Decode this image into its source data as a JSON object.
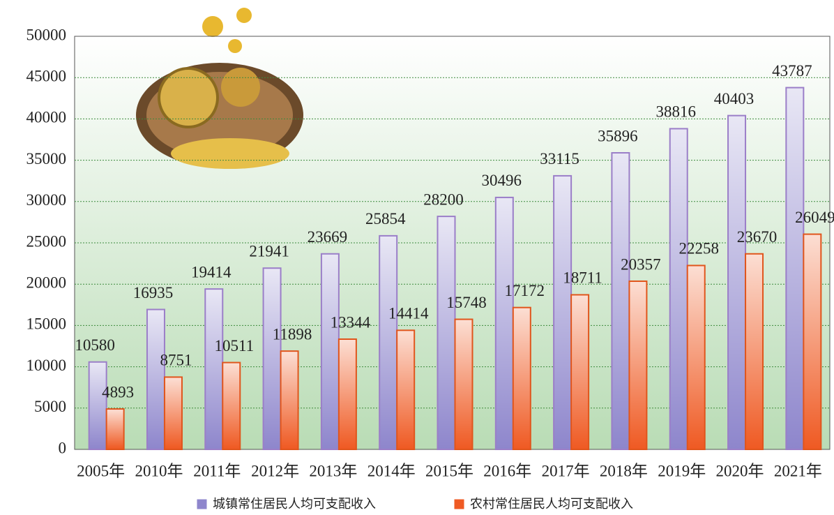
{
  "chart_data": {
    "type": "bar",
    "categories": [
      "2005年",
      "2010年",
      "2011年",
      "2012年",
      "2013年",
      "2014年",
      "2015年",
      "2016年",
      "2017年",
      "2018年",
      "2019年",
      "2020年",
      "2021年"
    ],
    "series": [
      {
        "name": "城镇常住居民人均可支配收入",
        "color": "#8e86cc",
        "values": [
          10580,
          16935,
          19414,
          21941,
          23669,
          25854,
          28200,
          30496,
          33115,
          35896,
          38816,
          40403,
          43787
        ]
      },
      {
        "name": "农村常住居民人均可支配收入",
        "color": "#ef5a23",
        "values": [
          4893,
          8751,
          10511,
          11898,
          13344,
          14414,
          15748,
          17172,
          18711,
          20357,
          22258,
          23670,
          26049
        ]
      }
    ],
    "ylim": [
      0,
      50000
    ],
    "yticks": [
      0,
      5000,
      10000,
      15000,
      20000,
      25000,
      30000,
      35000,
      40000,
      45000,
      50000
    ],
    "grid": true,
    "legend": "bottom"
  }
}
